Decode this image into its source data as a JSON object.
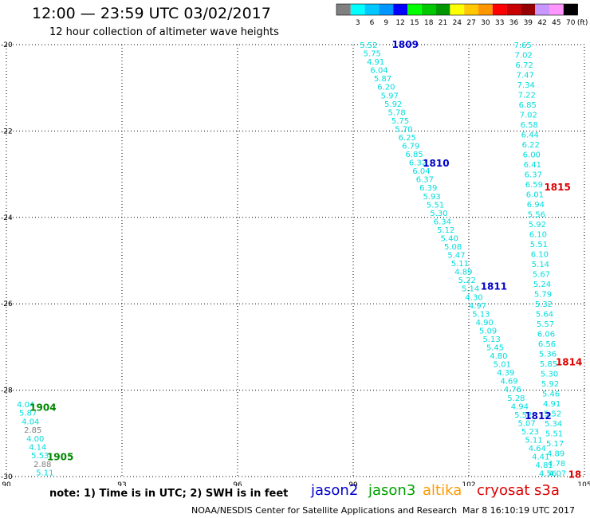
{
  "header": {
    "title": "12:00 — 23:59 UTC 03/02/2017",
    "subtitle": "12 hour collection of altimeter wave heights"
  },
  "colorbar": {
    "unit_label": "(ft)",
    "bins": [
      {
        "label": "",
        "color": "#808080"
      },
      {
        "label": "3",
        "color": "#00ffff"
      },
      {
        "label": "6",
        "color": "#00c8ff"
      },
      {
        "label": "9",
        "color": "#0096ff"
      },
      {
        "label": "12",
        "color": "#0000ff"
      },
      {
        "label": "15",
        "color": "#00ff00"
      },
      {
        "label": "18",
        "color": "#00c800"
      },
      {
        "label": "21",
        "color": "#009600"
      },
      {
        "label": "24",
        "color": "#ffff00"
      },
      {
        "label": "27",
        "color": "#ffc800"
      },
      {
        "label": "30",
        "color": "#ff9600"
      },
      {
        "label": "33",
        "color": "#ff0000"
      },
      {
        "label": "36",
        "color": "#c80000"
      },
      {
        "label": "39",
        "color": "#960000"
      },
      {
        "label": "42",
        "color": "#c896ff"
      },
      {
        "label": "45",
        "color": "#ff96ff"
      },
      {
        "label": "70",
        "color": "#000000"
      }
    ]
  },
  "footer": {
    "note": "note: 1) Time is in UTC; 2) SWH is in feet",
    "satellites": [
      {
        "name": "jason2",
        "color": "#0000cc"
      },
      {
        "name": "jason3",
        "color": "#00a000"
      },
      {
        "name": "altika",
        "color": "#ff9900"
      },
      {
        "name": "cryosat",
        "color": "#dd0000"
      },
      {
        "name": "s3a",
        "color": "#dd0000"
      }
    ],
    "credit": "NOAA/NESDIS Center for Satellite Applications and Research",
    "timestamp": "Mar  8 16:10:19 UTC 2017"
  },
  "chart_data": {
    "type": "scatter",
    "title": "12:00 — 23:59 UTC 03/02/2017",
    "subtitle": "12 hour collection of altimeter wave heights",
    "xlim": [
      90,
      105
    ],
    "ylim": [
      -30,
      -20
    ],
    "x_ticks": [
      90,
      93,
      96,
      99,
      102,
      105
    ],
    "y_ticks": [
      -20,
      -22,
      -24,
      -26,
      -28,
      -30
    ],
    "x_tick_labels": [
      "90",
      "93",
      "96",
      "99",
      "102",
      "105"
    ],
    "y_tick_labels": [
      "-20",
      "-22",
      "-24",
      "-26",
      "-28",
      "-30"
    ],
    "grid": true,
    "pass_labels": [
      {
        "text": "1809",
        "lon": 100.35,
        "lat": -20.0,
        "color": "#0000cc"
      },
      {
        "text": "1810",
        "lon": 101.15,
        "lat": -22.75,
        "color": "#0000cc"
      },
      {
        "text": "1811",
        "lon": 102.65,
        "lat": -25.6,
        "color": "#0000cc"
      },
      {
        "text": "1812",
        "lon": 103.8,
        "lat": -28.6,
        "color": "#0000cc"
      },
      {
        "text": "1815",
        "lon": 104.3,
        "lat": -23.3,
        "color": "#dd0000"
      },
      {
        "text": "1814",
        "lon": 104.6,
        "lat": -27.35,
        "color": "#dd0000"
      },
      {
        "text": "18",
        "lon": 104.75,
        "lat": -29.95,
        "color": "#dd0000"
      },
      {
        "text": "1904",
        "lon": 90.95,
        "lat": -28.4,
        "color": "#008800"
      },
      {
        "text": "1905",
        "lon": 91.4,
        "lat": -29.55,
        "color": "#008800"
      }
    ],
    "series": [
      {
        "name": "1809/1810/1811/1812",
        "lon_start": 99.4,
        "lon_end": 104.05,
        "lat_start": -20.0,
        "lat_end": -29.92,
        "values": [
          "5.52",
          "5.75",
          "4.91",
          "6.04",
          "5.87",
          "6.20",
          "5.97",
          "5.92",
          "5.78",
          "5.75",
          "5.70",
          "6.25",
          "6.79",
          "6.85",
          "6.32",
          "6.04",
          "6.37",
          "6.39",
          "5.93",
          "5.51",
          "5.30",
          "6.34",
          "5.12",
          "5.40",
          "5.08",
          "5.47",
          "5.11",
          "4.89",
          "5.22",
          "5.14",
          "4.30",
          "4.97",
          "5.13",
          "4.90",
          "5.09",
          "5.13",
          "5.45",
          "4.80",
          "5.01",
          "4.39",
          "4.69",
          "4.76",
          "5.28",
          "4.94",
          "5.52",
          "5.07",
          "5.23",
          "5.11",
          "4.64",
          "4.41",
          "4.81",
          "4.56"
        ]
      },
      {
        "name": "1815/1814",
        "lon_start": 103.4,
        "lon_end": 104.3,
        "lat_start": -20.0,
        "lat_end": -29.92,
        "values": [
          "7.65",
          "7.02",
          "6.72",
          "7.47",
          "7.34",
          "7.22",
          "6.85",
          "7.02",
          "6.58",
          "6.44",
          "6.22",
          "6.00",
          "6.41",
          "6.37",
          "6.59",
          "6.01",
          "6.94",
          "5.56",
          "5.92",
          "6.10",
          "5.51",
          "6.10",
          "5.14",
          "5.67",
          "5.24",
          "5.79",
          "5.32",
          "5.64",
          "5.57",
          "6.06",
          "6.56",
          "5.36",
          "5.85",
          "5.30",
          "5.92",
          "5.46",
          "4.91",
          "5.52",
          "5.34",
          "5.51",
          "5.17",
          "4.89",
          "4.78",
          "4.07"
        ]
      },
      {
        "name": "1904/1905",
        "lon_start": 90.5,
        "lon_end": 91.0,
        "lat_start": -28.32,
        "lat_end": -29.9,
        "values": [
          "4.04",
          "5.87",
          "4.04",
          "2.85",
          "4.00",
          "4.14",
          "5.53",
          "2.88",
          "5.11"
        ]
      }
    ]
  }
}
